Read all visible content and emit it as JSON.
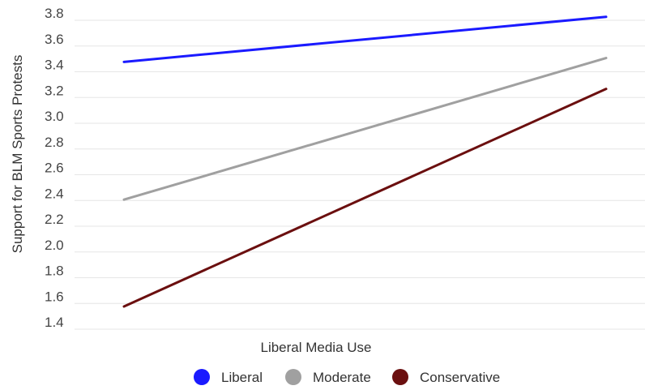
{
  "chart_data": {
    "type": "line",
    "xlabel": "Liberal Media Use",
    "ylabel": "Support for BLM Sports Protests",
    "ylim": [
      1.3,
      3.8
    ],
    "yticks": [
      "1.4",
      "1.6",
      "1.8",
      "2.0",
      "2.2",
      "2.4",
      "2.6",
      "2.8",
      "3.0",
      "3.2",
      "3.4",
      "3.6",
      "3.8"
    ],
    "grid": true,
    "legend_position": "bottom",
    "series": [
      {
        "name": "Liberal",
        "color": "#1a1aff",
        "values": [
          3.42,
          3.77
        ]
      },
      {
        "name": "Moderate",
        "color": "#a0a0a0",
        "values": [
          2.35,
          3.45
        ]
      },
      {
        "name": "Conservative",
        "color": "#6b0f0f",
        "values": [
          1.52,
          3.21
        ]
      }
    ]
  }
}
